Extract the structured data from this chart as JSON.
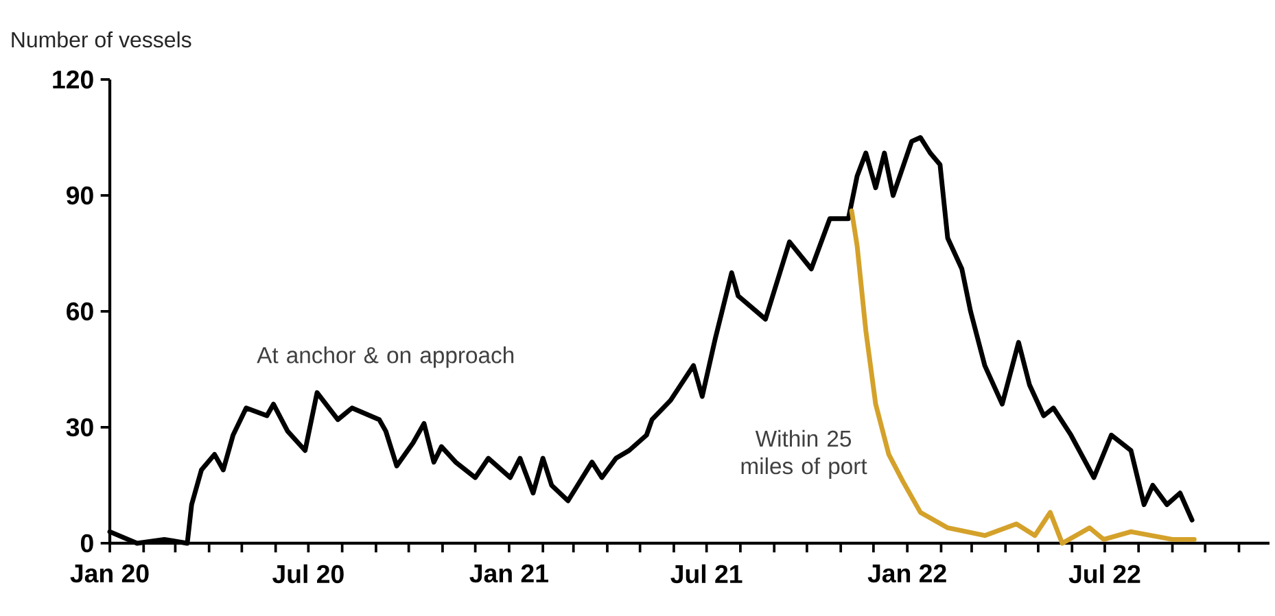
{
  "chart_data": {
    "type": "line",
    "ylabel": "Number of vessels",
    "xlim": [
      "2020-01-01",
      "2022-11-29"
    ],
    "xticks": [
      {
        "value": "2020-01",
        "label": "Jan 20"
      },
      {
        "value": "2020-02",
        "label": null
      },
      {
        "value": "2020-03",
        "label": null
      },
      {
        "value": "2020-04",
        "label": null
      },
      {
        "value": "2020-05",
        "label": null
      },
      {
        "value": "2020-06",
        "label": null
      },
      {
        "value": "2020-07",
        "label": "Jul 20"
      },
      {
        "value": "2020-08",
        "label": null
      },
      {
        "value": "2020-09",
        "label": null
      },
      {
        "value": "2020-10",
        "label": null
      },
      {
        "value": "2020-11",
        "label": null
      },
      {
        "value": "2020-12",
        "label": null
      },
      {
        "value": "2021-01",
        "label": "Jan 21"
      },
      {
        "value": "2021-02",
        "label": null
      },
      {
        "value": "2021-03",
        "label": null
      },
      {
        "value": "2021-04",
        "label": null
      },
      {
        "value": "2021-05",
        "label": null
      },
      {
        "value": "2021-06",
        "label": null
      },
      {
        "value": "2021-07",
        "label": "Jul 21"
      },
      {
        "value": "2021-08",
        "label": null
      },
      {
        "value": "2021-09",
        "label": null
      },
      {
        "value": "2021-10",
        "label": null
      },
      {
        "value": "2021-11",
        "label": null
      },
      {
        "value": "2021-12",
        "label": null
      },
      {
        "value": "2022-01",
        "label": "Jan 22"
      },
      {
        "value": "2022-02",
        "label": null
      },
      {
        "value": "2022-03",
        "label": null
      },
      {
        "value": "2022-04",
        "label": null
      },
      {
        "value": "2022-05",
        "label": null
      },
      {
        "value": "2022-06",
        "label": null
      },
      {
        "value": "2022-07",
        "label": "Jul 22"
      },
      {
        "value": "2022-08",
        "label": null
      },
      {
        "value": "2022-09",
        "label": null
      },
      {
        "value": "2022-10",
        "label": null
      },
      {
        "value": "2022-11",
        "label": null
      }
    ],
    "ylim": [
      0,
      120
    ],
    "yticks": [
      0,
      30,
      60,
      90,
      120
    ],
    "series": [
      {
        "name": "At anchor & on approach",
        "color": "#000000",
        "x": [
          "2020-01-01",
          "2020-01-26",
          "2020-02-20",
          "2020-03-12",
          "2020-03-16",
          "2020-03-25",
          "2020-04-06",
          "2020-04-14",
          "2020-04-23",
          "2020-05-05",
          "2020-05-24",
          "2020-05-30",
          "2020-06-12",
          "2020-06-28",
          "2020-07-09",
          "2020-07-28",
          "2020-08-10",
          "2020-09-04",
          "2020-09-10",
          "2020-09-20",
          "2020-10-05",
          "2020-10-15",
          "2020-10-24",
          "2020-10-31",
          "2020-11-13",
          "2020-12-01",
          "2020-12-13",
          "2021-01-02",
          "2021-01-11",
          "2021-01-23",
          "2021-02-01",
          "2021-02-09",
          "2021-02-24",
          "2021-03-18",
          "2021-03-27",
          "2021-04-09",
          "2021-04-21",
          "2021-05-07",
          "2021-05-12",
          "2021-05-29",
          "2021-06-19",
          "2021-06-27",
          "2021-07-09",
          "2021-07-24",
          "2021-07-30",
          "2021-08-24",
          "2021-09-15",
          "2021-10-05",
          "2021-10-22",
          "2021-11-08",
          "2021-11-16",
          "2021-11-24",
          "2021-12-03",
          "2021-12-11",
          "2021-12-19",
          "2022-01-05",
          "2022-01-13",
          "2022-01-22",
          "2022-01-31",
          "2022-02-07",
          "2022-02-20",
          "2022-02-28",
          "2022-03-13",
          "2022-03-29",
          "2022-04-13",
          "2022-04-23",
          "2022-05-06",
          "2022-05-15",
          "2022-05-31",
          "2022-06-21",
          "2022-07-07",
          "2022-07-25",
          "2022-08-06",
          "2022-08-14",
          "2022-08-27",
          "2022-09-08",
          "2022-09-19"
        ],
        "values": [
          3,
          0,
          1,
          0,
          10,
          19,
          23,
          19,
          28,
          35,
          33,
          36,
          29,
          24,
          39,
          32,
          35,
          32,
          29,
          20,
          26,
          31,
          21,
          25,
          21,
          17,
          22,
          17,
          22,
          13,
          22,
          15,
          11,
          21,
          17,
          22,
          24,
          28,
          32,
          37,
          46,
          38,
          53,
          70,
          64,
          58,
          78,
          71,
          84,
          84,
          95,
          101,
          92,
          101,
          90,
          104,
          105,
          101,
          98,
          79,
          71,
          60,
          46,
          36,
          52,
          41,
          33,
          35,
          28,
          17,
          28,
          24,
          10,
          15,
          10,
          13,
          6
        ]
      },
      {
        "name": "Within 25 miles of port",
        "color": "#d4a12a",
        "x": [
          "2021-11-11",
          "2021-11-16",
          "2021-11-24",
          "2021-12-03",
          "2021-12-15",
          "2021-12-28",
          "2022-01-13",
          "2022-02-07",
          "2022-03-13",
          "2022-04-11",
          "2022-04-28",
          "2022-05-12",
          "2022-05-23",
          "2022-06-17",
          "2022-06-30",
          "2022-07-25",
          "2022-09-01",
          "2022-09-21"
        ],
        "values": [
          86,
          77,
          55,
          36,
          23,
          16,
          8,
          4,
          2,
          5,
          2,
          8,
          0,
          4,
          1,
          3,
          1,
          1
        ]
      }
    ]
  }
}
